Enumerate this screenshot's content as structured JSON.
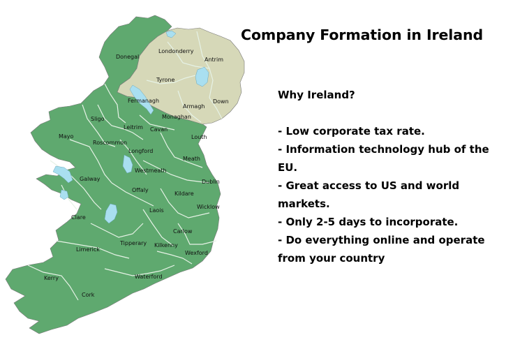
{
  "title": "Company Formation in Ireland",
  "info": {
    "heading": "Why Ireland?",
    "points": [
      "- Low corporate tax rate.",
      "- Information technology hub of the EU.",
      "- Great access to US and world markets.",
      "- Only 2-5 days to incorporate.",
      "- Do everything online and operate from your country"
    ]
  },
  "map": {
    "colors": {
      "republic": "#5fa96f",
      "northern_ireland": "#d6d8b8",
      "lakes": "#a9dff0",
      "border": "#e6f2e6",
      "outline": "#777777"
    },
    "counties": [
      {
        "name": "Donegal",
        "region": "republic"
      },
      {
        "name": "Londonderry",
        "region": "northern_ireland"
      },
      {
        "name": "Antrim",
        "region": "northern_ireland"
      },
      {
        "name": "Tyrone",
        "region": "northern_ireland"
      },
      {
        "name": "Fermanagh",
        "region": "northern_ireland"
      },
      {
        "name": "Armagh",
        "region": "northern_ireland"
      },
      {
        "name": "Down",
        "region": "northern_ireland"
      },
      {
        "name": "Monaghan",
        "region": "republic"
      },
      {
        "name": "Sligo",
        "region": "republic"
      },
      {
        "name": "Leitrim",
        "region": "republic"
      },
      {
        "name": "Cavan",
        "region": "republic"
      },
      {
        "name": "Mayo",
        "region": "republic"
      },
      {
        "name": "Louth",
        "region": "republic"
      },
      {
        "name": "Roscommon",
        "region": "republic"
      },
      {
        "name": "Longford",
        "region": "republic"
      },
      {
        "name": "Meath",
        "region": "republic"
      },
      {
        "name": "Westmeath",
        "region": "republic"
      },
      {
        "name": "Galway",
        "region": "republic"
      },
      {
        "name": "Dublin",
        "region": "republic"
      },
      {
        "name": "Offaly",
        "region": "republic"
      },
      {
        "name": "Kildare",
        "region": "republic"
      },
      {
        "name": "Wicklow",
        "region": "republic"
      },
      {
        "name": "Laois",
        "region": "republic"
      },
      {
        "name": "Clare",
        "region": "republic"
      },
      {
        "name": "Carlow",
        "region": "republic"
      },
      {
        "name": "Limerick",
        "region": "republic"
      },
      {
        "name": "Tipperary",
        "region": "republic"
      },
      {
        "name": "Kilkenny",
        "region": "republic"
      },
      {
        "name": "Wexford",
        "region": "republic"
      },
      {
        "name": "Kerry",
        "region": "republic"
      },
      {
        "name": "Waterford",
        "region": "republic"
      },
      {
        "name": "Cork",
        "region": "republic"
      }
    ]
  }
}
